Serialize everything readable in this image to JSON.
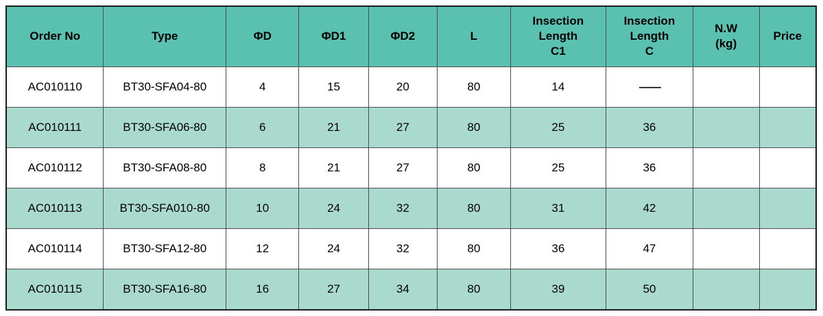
{
  "colors": {
    "header_bg": "#5ac1b1",
    "row_alt_bg": "#a9dacd",
    "row_bg": "#ffffff",
    "grid_line": "#4d4d4d",
    "outer_line": "#1c1c1c",
    "text": "#000000"
  },
  "table": {
    "columns": [
      {
        "id": "order_no",
        "label": "Order No"
      },
      {
        "id": "type",
        "label": "Type"
      },
      {
        "id": "d",
        "label": "ΦD"
      },
      {
        "id": "d1",
        "label": "ΦD1"
      },
      {
        "id": "d2",
        "label": "ΦD2"
      },
      {
        "id": "l",
        "label": "L"
      },
      {
        "id": "insection_length_c1",
        "label": "Insection\nLength\nC1"
      },
      {
        "id": "insection_length_c",
        "label": "Insection\nLength\nC"
      },
      {
        "id": "nw_kg",
        "label": "N.W\n(kg)"
      },
      {
        "id": "price",
        "label": "Price"
      }
    ],
    "rows": [
      [
        "AC010110",
        "BT30-SFA04-80",
        "4",
        "15",
        "20",
        "80",
        "14",
        "——",
        "",
        ""
      ],
      [
        "AC010111",
        "BT30-SFA06-80",
        "6",
        "21",
        "27",
        "80",
        "25",
        "36",
        "",
        ""
      ],
      [
        "AC010112",
        "BT30-SFA08-80",
        "8",
        "21",
        "27",
        "80",
        "25",
        "36",
        "",
        ""
      ],
      [
        "AC010113",
        "BT30-SFA010-80",
        "10",
        "24",
        "32",
        "80",
        "31",
        "42",
        "",
        ""
      ],
      [
        "AC010114",
        "BT30-SFA12-80",
        "12",
        "24",
        "32",
        "80",
        "36",
        "47",
        "",
        ""
      ],
      [
        "AC010115",
        "BT30-SFA16-80",
        "16",
        "27",
        "34",
        "80",
        "39",
        "50",
        "",
        ""
      ]
    ]
  }
}
